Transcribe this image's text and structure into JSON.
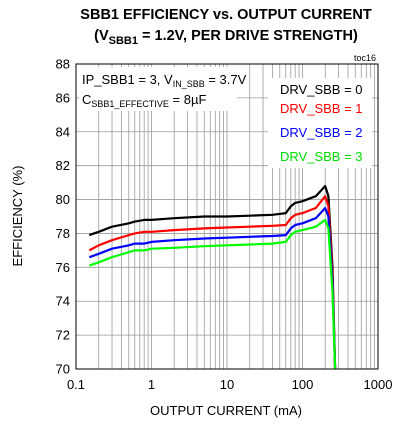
{
  "chart_data": {
    "type": "line",
    "title_line1": "SBB1 EFFICIENCY vs. OUTPUT CURRENT",
    "title_line2": {
      "prefix": "(V",
      "sub": "SBB1",
      "suffix": " = 1.2V, PER DRIVE STRENGTH)"
    },
    "toc": "toc16",
    "xlabel": "OUTPUT CURRENT (mA)",
    "ylabel": "EFFICIENCY (%)",
    "xscale": "log",
    "xlim": [
      0.1,
      1000
    ],
    "ylim": [
      70,
      88
    ],
    "xticks": [
      0.1,
      1,
      10,
      100,
      1000
    ],
    "xtick_labels": [
      "0.1",
      "1",
      "10",
      "100",
      "1000"
    ],
    "yticks": [
      70,
      72,
      74,
      76,
      78,
      80,
      82,
      84,
      86,
      88
    ],
    "ytick_labels": [
      "70",
      "72",
      "74",
      "76",
      "78",
      "80",
      "82",
      "84",
      "86",
      "88"
    ],
    "grid": true,
    "annotations": {
      "line1": {
        "a": "IP_SBB1 = 3, V",
        "sub": "IN_SBB",
        "b": " = 3.7V"
      },
      "line2": {
        "a": "C",
        "sub": "SBB1_EFFECTIVE",
        "b": " = 8µF"
      }
    },
    "legend_position": "top-right",
    "series": [
      {
        "name": "DRV_SBB = 0",
        "color": "#000000",
        "x": [
          0.15,
          0.2,
          0.3,
          0.5,
          0.6,
          0.8,
          1,
          2,
          5,
          10,
          20,
          40,
          60,
          70,
          80,
          100,
          150,
          200,
          220,
          250,
          270
        ],
        "y": [
          77.9,
          78.1,
          78.4,
          78.6,
          78.7,
          78.8,
          78.8,
          78.9,
          79.0,
          79.0,
          79.05,
          79.1,
          79.2,
          79.6,
          79.8,
          79.9,
          80.2,
          80.8,
          80.2,
          76.0,
          70.0
        ]
      },
      {
        "name": "DRV_SBB = 1",
        "color": "#ff0000",
        "x": [
          0.15,
          0.2,
          0.3,
          0.5,
          0.6,
          0.8,
          1,
          2,
          5,
          10,
          20,
          40,
          60,
          70,
          80,
          100,
          150,
          200,
          220,
          250,
          270
        ],
        "y": [
          77.0,
          77.3,
          77.6,
          77.9,
          78.0,
          78.1,
          78.1,
          78.2,
          78.3,
          78.35,
          78.4,
          78.45,
          78.5,
          78.9,
          79.1,
          79.2,
          79.5,
          80.2,
          79.6,
          75.5,
          70.0
        ]
      },
      {
        "name": "DRV_SBB = 2",
        "color": "#0000ff",
        "x": [
          0.15,
          0.2,
          0.3,
          0.5,
          0.6,
          0.8,
          1,
          2,
          5,
          10,
          20,
          40,
          60,
          70,
          80,
          100,
          150,
          200,
          220,
          250,
          270
        ],
        "y": [
          76.6,
          76.8,
          77.1,
          77.3,
          77.4,
          77.4,
          77.5,
          77.6,
          77.7,
          77.75,
          77.8,
          77.85,
          77.9,
          78.3,
          78.5,
          78.6,
          78.9,
          79.5,
          79.0,
          75.0,
          70.0
        ]
      },
      {
        "name": "DRV_SBB = 3",
        "color": "#00ff00",
        "x": [
          0.15,
          0.2,
          0.3,
          0.5,
          0.6,
          0.8,
          1,
          2,
          5,
          10,
          20,
          40,
          60,
          70,
          80,
          100,
          150,
          200,
          220,
          250,
          270
        ],
        "y": [
          76.1,
          76.3,
          76.6,
          76.9,
          77.0,
          77.0,
          77.1,
          77.15,
          77.25,
          77.3,
          77.35,
          77.4,
          77.5,
          77.9,
          78.1,
          78.2,
          78.4,
          78.8,
          78.3,
          74.5,
          70.0
        ]
      }
    ]
  }
}
